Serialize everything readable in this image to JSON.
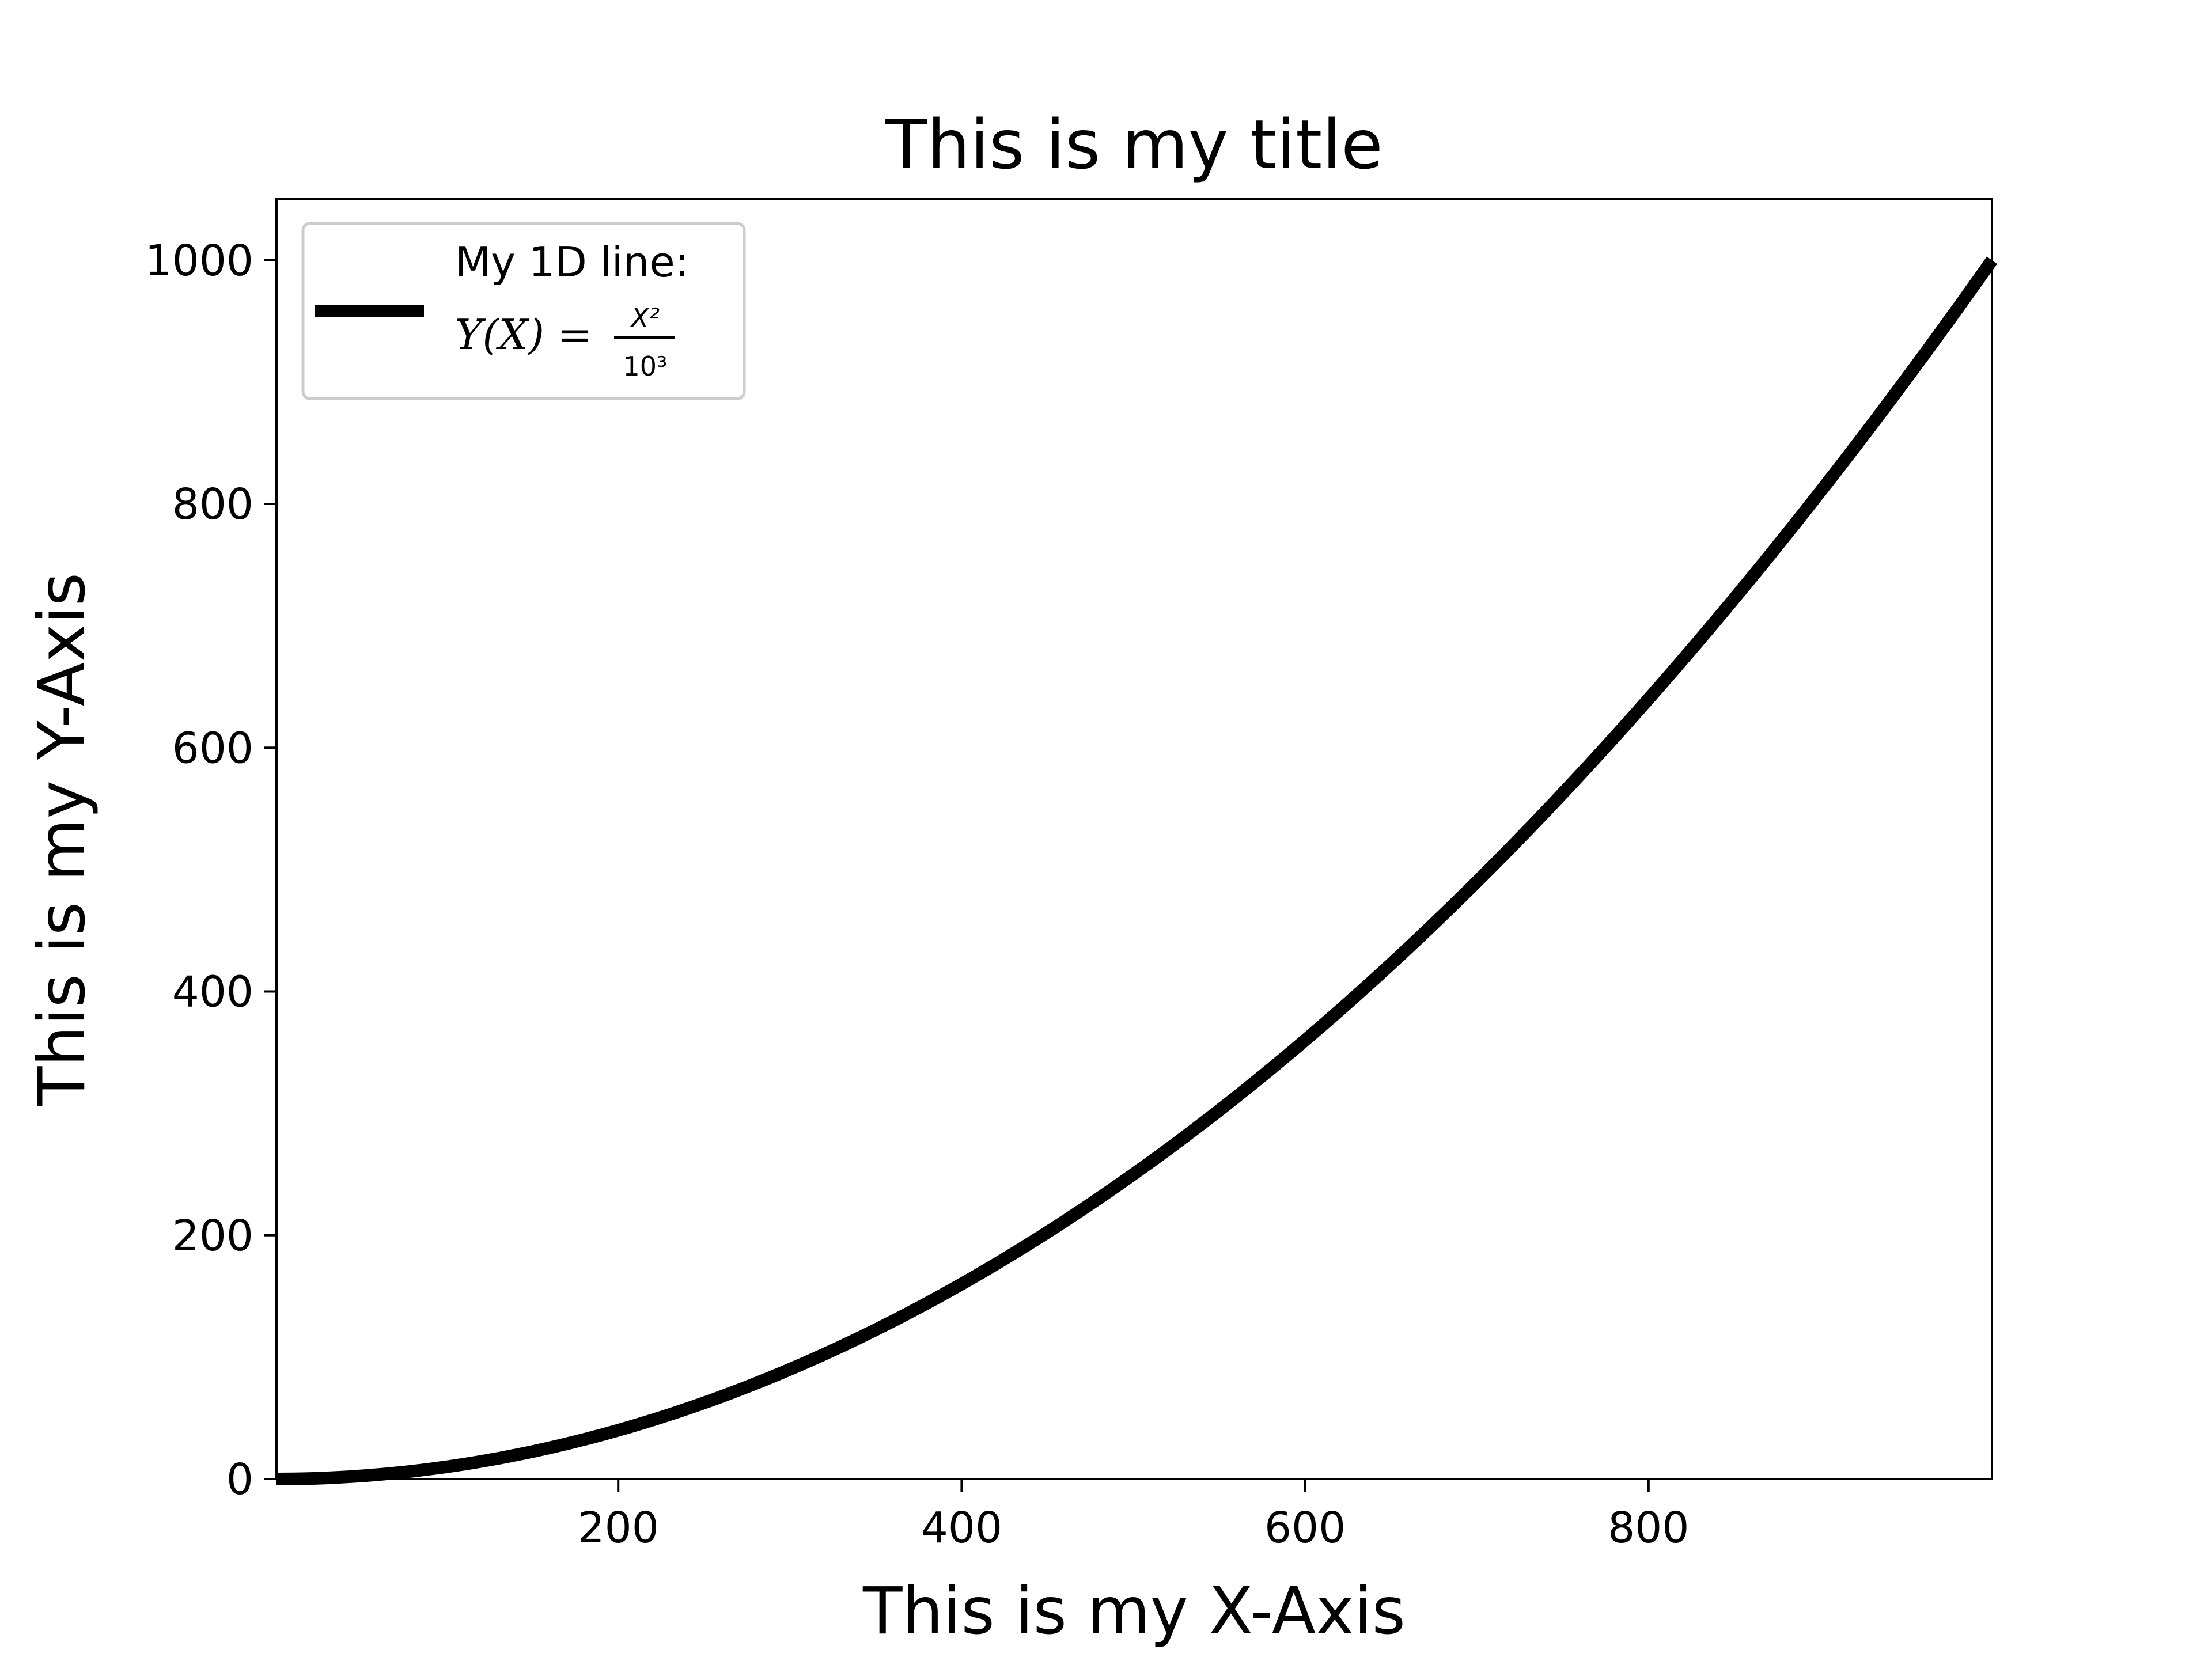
{
  "chart_data": {
    "type": "line",
    "title": "This is my title",
    "xlabel": "This is my X-Axis",
    "ylabel": "This is my Y-Axis",
    "xlim": [
      1,
      1000
    ],
    "ylim": [
      0,
      1050
    ],
    "xticks": [
      200,
      400,
      600,
      800
    ],
    "xtick_labels": [
      "200",
      "400",
      "600",
      "800"
    ],
    "yticks": [
      0,
      200,
      400,
      600,
      800,
      1000
    ],
    "ytick_labels": [
      "0",
      "200",
      "400",
      "600",
      "800",
      "1000"
    ],
    "grid": false,
    "legend_placement": "upper-left",
    "series": [
      {
        "name": "My 1D line: Y(X) = X²/10³",
        "legend_line1": "My 1D line:",
        "legend_math": "Y(X) =",
        "legend_numerator": "X²",
        "legend_denominator": "10³",
        "color": "#000000",
        "x": [
          1,
          100,
          200,
          300,
          400,
          500,
          600,
          700,
          800,
          900,
          1000
        ],
        "y": [
          0.001,
          10,
          40,
          90,
          160,
          250,
          360,
          490,
          640,
          810,
          1000
        ]
      }
    ]
  }
}
